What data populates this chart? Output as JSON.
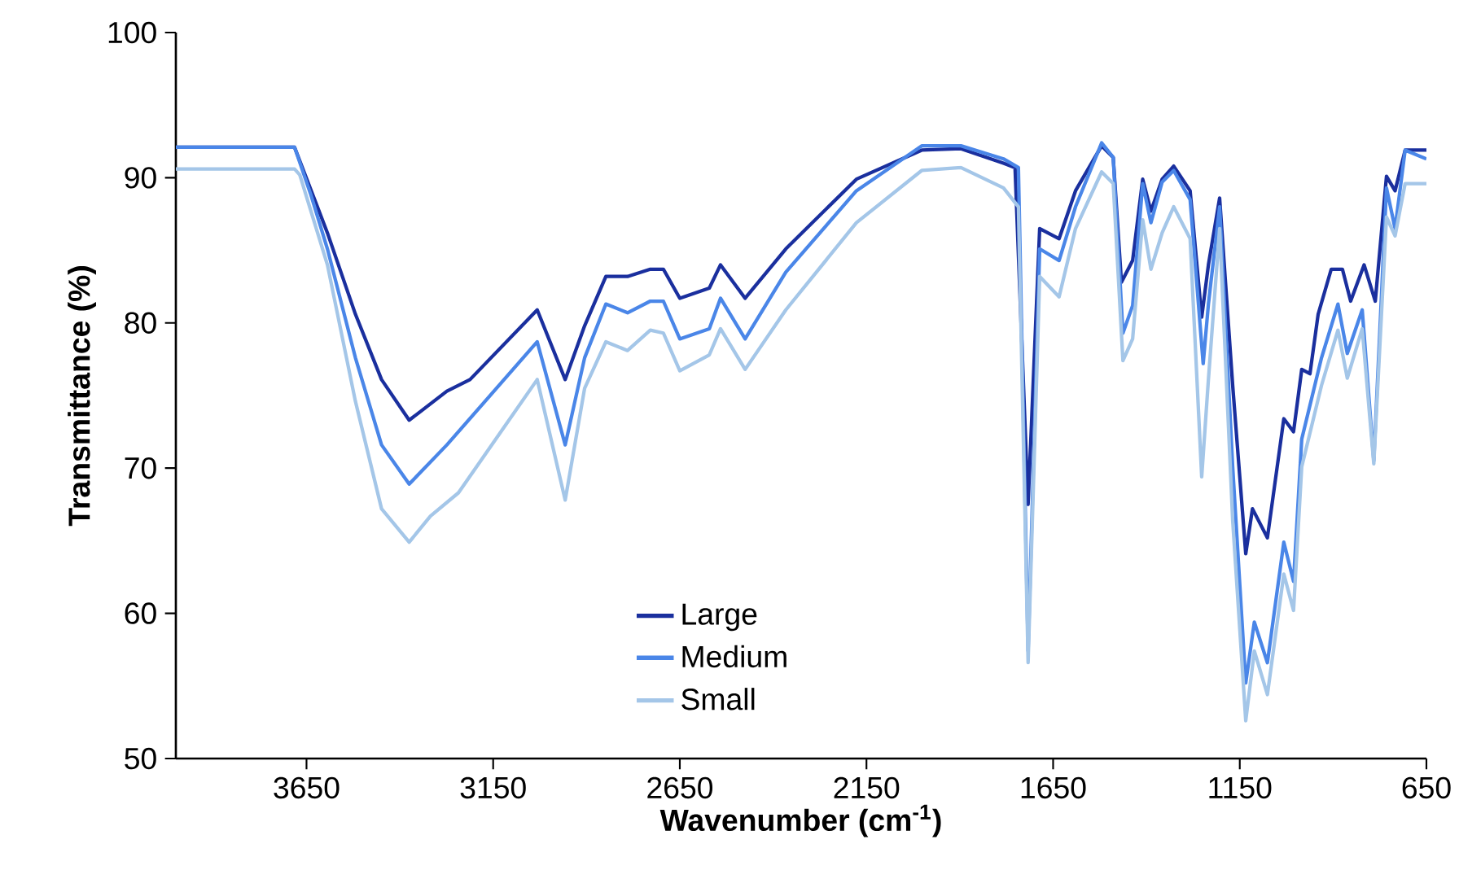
{
  "chart_data": {
    "type": "line",
    "xlabel": "Wavenumber (cm$^{-1}$)",
    "ylabel": "Transmittance (%)",
    "xlim": [
      4000,
      650
    ],
    "ylim": [
      50,
      100
    ],
    "xticks": [
      3650,
      3150,
      2650,
      2150,
      1650,
      1150,
      650
    ],
    "yticks": [
      50,
      60,
      70,
      80,
      90,
      100
    ],
    "legend": "bottom",
    "series": [
      {
        "name": "Large",
        "color": "#1a2f9e",
        "x": [
          4000,
          3682,
          3594,
          3519,
          3449,
          3375,
          3274,
          3212,
          3032,
          2957,
          2905,
          2848,
          2790,
          2729,
          2694,
          2650,
          2571,
          2541,
          2475,
          2366,
          2177,
          2002,
          1897,
          1783,
          1752,
          1717,
          1686,
          1634,
          1590,
          1520,
          1489,
          1467,
          1437,
          1410,
          1388,
          1358,
          1327,
          1283,
          1252,
          1234,
          1204,
          1169,
          1134,
          1116,
          1076,
          1032,
          1006,
          984,
          962,
          940,
          905,
          875,
          853,
          817,
          787,
          757,
          734,
          707,
          650
        ],
        "values": [
          92.1,
          92.1,
          86.2,
          80.6,
          76.1,
          73.3,
          75.3,
          76.1,
          80.9,
          76.1,
          79.8,
          83.2,
          83.2,
          83.7,
          83.7,
          81.7,
          82.4,
          84.0,
          81.7,
          85.1,
          89.9,
          91.9,
          92.0,
          91.0,
          90.7,
          67.5,
          86.5,
          85.8,
          89.1,
          92.2,
          91.4,
          82.8,
          84.3,
          89.9,
          87.7,
          89.9,
          90.8,
          89.1,
          80.4,
          84.0,
          88.6,
          75.7,
          64.1,
          67.2,
          65.2,
          73.4,
          72.5,
          76.8,
          76.5,
          80.6,
          83.7,
          83.7,
          81.5,
          84.0,
          81.5,
          90.1,
          89.1,
          91.9,
          91.9
        ]
      },
      {
        "name": "Medium",
        "color": "#4a86e8",
        "x": [
          4000,
          3682,
          3638,
          3594,
          3519,
          3449,
          3375,
          3274,
          3032,
          2957,
          2905,
          2848,
          2790,
          2729,
          2694,
          2650,
          2571,
          2541,
          2475,
          2366,
          2177,
          2002,
          1897,
          1783,
          1743,
          1717,
          1686,
          1634,
          1590,
          1520,
          1489,
          1463,
          1437,
          1410,
          1388,
          1358,
          1327,
          1283,
          1248,
          1234,
          1204,
          1169,
          1134,
          1111,
          1076,
          1032,
          1006,
          984,
          931,
          887,
          862,
          822,
          791,
          757,
          734,
          707,
          650
        ],
        "values": [
          92.1,
          92.1,
          88.8,
          85.1,
          77.6,
          71.6,
          68.9,
          71.6,
          78.7,
          71.6,
          77.6,
          81.3,
          80.7,
          81.5,
          81.5,
          78.9,
          79.6,
          81.7,
          78.9,
          83.5,
          89.1,
          92.2,
          92.2,
          91.3,
          90.7,
          57.4,
          85.1,
          84.3,
          88.0,
          92.4,
          91.4,
          79.3,
          81.2,
          89.6,
          86.9,
          89.7,
          90.5,
          88.5,
          77.2,
          81.3,
          88.0,
          70.1,
          55.2,
          59.4,
          56.6,
          64.9,
          62.2,
          72.0,
          77.6,
          81.3,
          77.9,
          80.9,
          70.5,
          89.3,
          86.5,
          91.9,
          91.3
        ]
      },
      {
        "name": "Small",
        "color": "#a4c6e8",
        "x": [
          4000,
          3682,
          3668,
          3594,
          3519,
          3449,
          3375,
          3318,
          3243,
          3032,
          2957,
          2905,
          2848,
          2790,
          2729,
          2694,
          2650,
          2571,
          2541,
          2475,
          2366,
          2177,
          2002,
          1897,
          1783,
          1743,
          1717,
          1686,
          1634,
          1590,
          1520,
          1489,
          1463,
          1437,
          1410,
          1388,
          1358,
          1327,
          1283,
          1252,
          1234,
          1204,
          1169,
          1134,
          1111,
          1076,
          1032,
          1006,
          984,
          931,
          887,
          862,
          822,
          791,
          757,
          734,
          707,
          650
        ],
        "values": [
          90.6,
          90.6,
          90.2,
          84.0,
          74.6,
          67.2,
          64.9,
          66.7,
          68.3,
          76.1,
          67.8,
          75.5,
          78.7,
          78.1,
          79.5,
          79.3,
          76.7,
          77.8,
          79.6,
          76.8,
          80.9,
          86.9,
          90.5,
          90.7,
          89.3,
          88.0,
          56.6,
          83.2,
          81.8,
          86.5,
          90.4,
          89.6,
          77.4,
          78.9,
          87.1,
          83.7,
          86.2,
          88.0,
          85.8,
          69.4,
          76.1,
          86.5,
          66.4,
          52.6,
          57.4,
          54.4,
          62.7,
          60.2,
          70.1,
          75.7,
          79.5,
          76.2,
          79.6,
          70.3,
          87.3,
          86.0,
          89.6,
          89.6
        ]
      }
    ]
  }
}
